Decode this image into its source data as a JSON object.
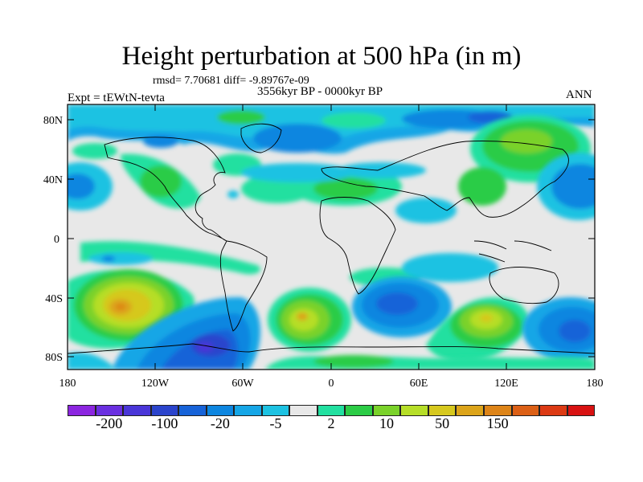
{
  "title": "Height perturbation at 500 hPa (in m)",
  "stats": "rmsd= 7.70681 diff= -9.89767e-09",
  "period": "3556kyr BP - 0000kyr BP",
  "experiment": "Expt = tEWtN-tevta",
  "season": "ANN",
  "lat_ticks": [
    "80N",
    "40N",
    "0",
    "40S",
    "80S"
  ],
  "lon_ticks": [
    "180",
    "120W",
    "60W",
    "0",
    "60E",
    "120E",
    "180"
  ],
  "colorbar": {
    "colors": [
      "#8c26e0",
      "#6a2fe0",
      "#4a36d8",
      "#2b44cc",
      "#1763d8",
      "#0d86e0",
      "#16a6e6",
      "#1dc2e2",
      "#e8e8e8",
      "#22e0a0",
      "#2ccc46",
      "#7ad22a",
      "#b6de28",
      "#d6c81e",
      "#dca41a",
      "#dd8418",
      "#dc6016",
      "#dc3a14",
      "#d81212"
    ],
    "labels": [
      "-200",
      "-100",
      "-20",
      "-5",
      "2",
      "10",
      "50",
      "150"
    ]
  }
}
